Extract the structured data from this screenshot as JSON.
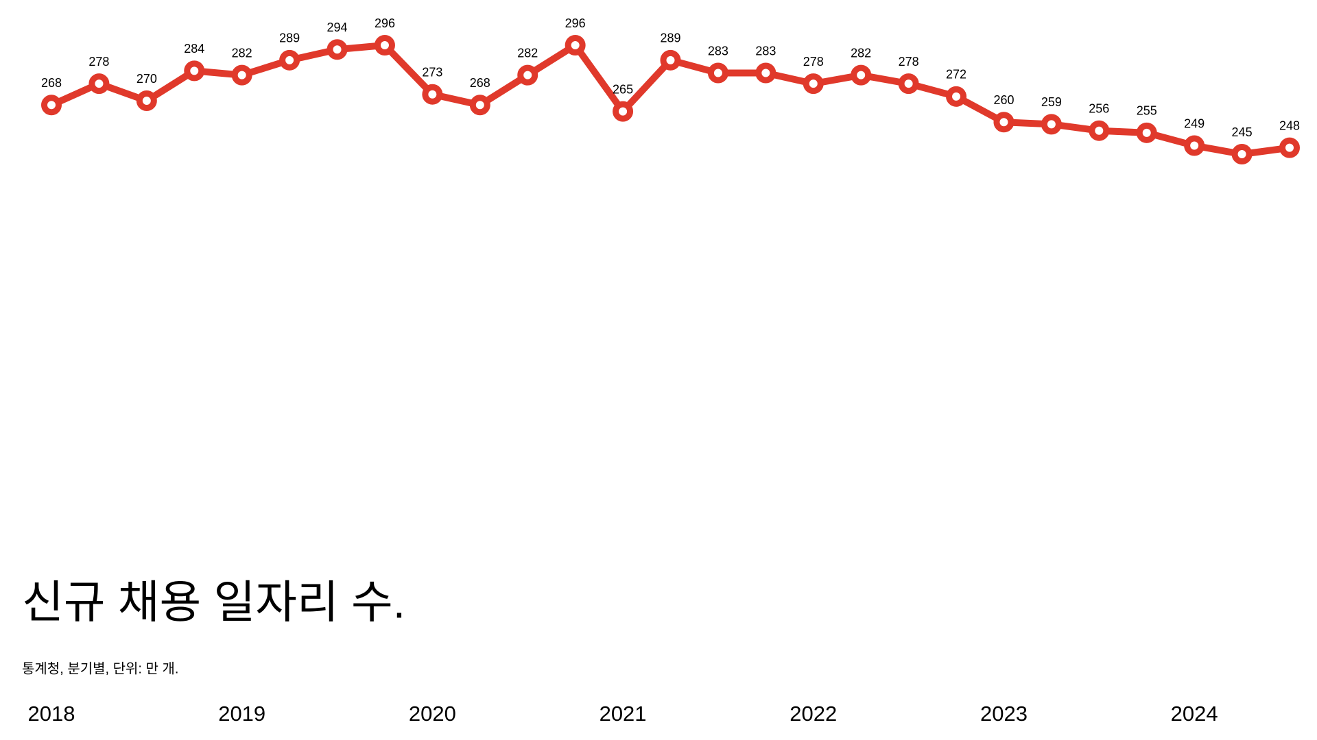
{
  "chart_data": {
    "type": "line",
    "title": "신규 채용 일자리 수.",
    "subtitle": "통계청, 분기별, 단위: 만 개.",
    "categories": [
      "2018",
      null,
      null,
      null,
      "2019",
      null,
      null,
      null,
      "2020",
      null,
      null,
      null,
      "2021",
      null,
      null,
      null,
      "2022",
      null,
      null,
      null,
      "2023",
      null,
      null,
      null,
      "2024",
      null,
      null
    ],
    "values": [
      268,
      278,
      270,
      284,
      282,
      289,
      294,
      296,
      273,
      268,
      282,
      296,
      265,
      289,
      283,
      283,
      278,
      282,
      278,
      272,
      260,
      259,
      256,
      255,
      249,
      245,
      248
    ],
    "color": "#e0392b",
    "data_labels": true
  }
}
